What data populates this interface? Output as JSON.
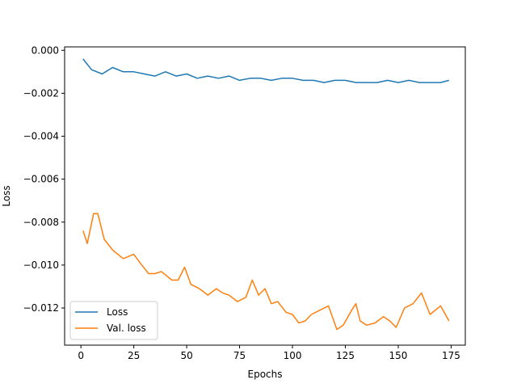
{
  "chart_data": {
    "type": "line",
    "xlabel": "Epochs",
    "ylabel": "Loss",
    "xlim": [
      -7.7,
      181.7
    ],
    "ylim": [
      -0.01373,
      0.00016
    ],
    "xticks": [
      0,
      25,
      50,
      75,
      100,
      125,
      150,
      175
    ],
    "xtick_labels": [
      "0",
      "25",
      "50",
      "75",
      "100",
      "125",
      "150",
      "175"
    ],
    "yticks": [
      0.0,
      -0.002,
      -0.004,
      -0.006,
      -0.008,
      -0.01,
      -0.012
    ],
    "ytick_labels": [
      "0.000",
      "−0.002",
      "−0.004",
      "−0.006",
      "−0.008",
      "−0.010",
      "−0.012"
    ],
    "grid": false,
    "legend_position": "lower-left",
    "series": [
      {
        "name": "Loss",
        "color": "#1f77b4",
        "x": [
          1,
          5,
          10,
          15,
          20,
          25,
          30,
          35,
          40,
          45,
          50,
          55,
          60,
          65,
          70,
          75,
          80,
          85,
          90,
          95,
          100,
          105,
          110,
          115,
          120,
          125,
          130,
          135,
          140,
          145,
          150,
          155,
          160,
          165,
          170,
          174
        ],
        "y": [
          -0.0004,
          -0.0009,
          -0.0011,
          -0.0008,
          -0.001,
          -0.001,
          -0.0011,
          -0.0012,
          -0.001,
          -0.0012,
          -0.0011,
          -0.0013,
          -0.0012,
          -0.0013,
          -0.0012,
          -0.0014,
          -0.0013,
          -0.0013,
          -0.0014,
          -0.0013,
          -0.0013,
          -0.0014,
          -0.0014,
          -0.0015,
          -0.0014,
          -0.0014,
          -0.0015,
          -0.0015,
          -0.0015,
          -0.0014,
          -0.0015,
          -0.0014,
          -0.0015,
          -0.0015,
          -0.0015,
          -0.0014
        ]
      },
      {
        "name": "Val. loss",
        "color": "#ff7f0e",
        "x": [
          1,
          3,
          6,
          8,
          11,
          15,
          20,
          25,
          28,
          32,
          35,
          38,
          43,
          46,
          49,
          52,
          56,
          60,
          64,
          67,
          70,
          74,
          78,
          81,
          84,
          87,
          90,
          93,
          97,
          100,
          103,
          106,
          109,
          113,
          117,
          121,
          124,
          128,
          130,
          132,
          135,
          139,
          143,
          146,
          149,
          153,
          157,
          161,
          165,
          170,
          174
        ],
        "y": [
          -0.0084,
          -0.009,
          -0.0076,
          -0.0076,
          -0.0088,
          -0.0093,
          -0.0097,
          -0.0095,
          -0.0099,
          -0.0104,
          -0.0104,
          -0.0103,
          -0.0107,
          -0.0107,
          -0.0101,
          -0.0109,
          -0.0111,
          -0.0114,
          -0.0111,
          -0.0113,
          -0.0114,
          -0.0117,
          -0.0115,
          -0.0107,
          -0.0114,
          -0.0111,
          -0.0118,
          -0.0117,
          -0.0122,
          -0.0123,
          -0.0127,
          -0.0126,
          -0.0123,
          -0.0121,
          -0.0119,
          -0.013,
          -0.0128,
          -0.0121,
          -0.0118,
          -0.0126,
          -0.0128,
          -0.0127,
          -0.0124,
          -0.0126,
          -0.0129,
          -0.012,
          -0.0118,
          -0.0113,
          -0.0123,
          -0.0119,
          -0.0126
        ]
      }
    ]
  }
}
